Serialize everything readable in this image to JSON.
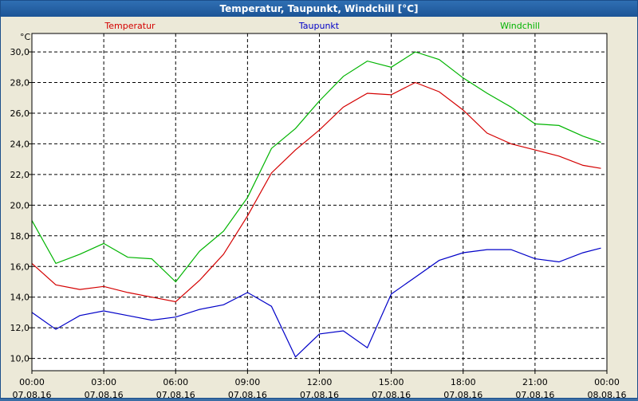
{
  "window": {
    "title": "Temperatur, Taupunkt, Windchill [°C]"
  },
  "chart_data": {
    "type": "line",
    "title": "Temperatur, Taupunkt, Windchill [°C]",
    "ylabel": "°C",
    "ylim": [
      9.2,
      31.2
    ],
    "y_ticks": [
      "10,0",
      "12,0",
      "14,0",
      "16,0",
      "18,0",
      "20,0",
      "22,0",
      "24,0",
      "26,0",
      "28,0",
      "30,0"
    ],
    "x_ticks": [
      {
        "time": "00:00",
        "date": "07.08.16"
      },
      {
        "time": "03:00",
        "date": "07.08.16"
      },
      {
        "time": "06:00",
        "date": "07.08.16"
      },
      {
        "time": "09:00",
        "date": "07.08.16"
      },
      {
        "time": "12:00",
        "date": "07.08.16"
      },
      {
        "time": "15:00",
        "date": "07.08.16"
      },
      {
        "time": "18:00",
        "date": "07.08.16"
      },
      {
        "time": "21:00",
        "date": "07.08.16"
      },
      {
        "time": "00:00",
        "date": "08.08.16"
      }
    ],
    "grid": true,
    "colors": {
      "Temperatur": "#d40000",
      "Taupunkt": "#0000c8",
      "Windchill": "#00b400"
    },
    "x": [
      "00:00",
      "01:00",
      "02:00",
      "03:00",
      "04:00",
      "05:00",
      "06:00",
      "07:00",
      "08:00",
      "09:00",
      "10:00",
      "11:00",
      "12:00",
      "13:00",
      "14:00",
      "15:00",
      "16:00",
      "17:00",
      "18:00",
      "19:00",
      "20:00",
      "21:00",
      "22:00",
      "23:00",
      "23:45"
    ],
    "series": [
      {
        "name": "Temperatur",
        "values": [
          16.2,
          14.8,
          14.5,
          14.7,
          14.3,
          14.0,
          13.7,
          15.1,
          16.8,
          19.3,
          22.1,
          23.6,
          24.9,
          26.4,
          27.3,
          27.2,
          28.0,
          27.4,
          26.2,
          24.7,
          24.0,
          23.6,
          23.2,
          22.6,
          22.4
        ]
      },
      {
        "name": "Taupunkt",
        "values": [
          13.0,
          11.9,
          12.8,
          13.1,
          12.8,
          12.5,
          12.7,
          13.2,
          13.5,
          14.3,
          13.4,
          10.1,
          11.6,
          11.8,
          10.7,
          14.2,
          15.3,
          16.4,
          16.9,
          17.1,
          17.1,
          16.5,
          16.3,
          16.9,
          17.2
        ]
      },
      {
        "name": "Windchill",
        "values": [
          19.0,
          16.2,
          16.8,
          17.5,
          16.6,
          16.5,
          15.0,
          17.0,
          18.3,
          20.5,
          23.7,
          25.0,
          26.8,
          28.4,
          29.4,
          29.0,
          30.0,
          29.5,
          28.3,
          27.3,
          26.4,
          25.3,
          25.2,
          24.5,
          24.1
        ]
      }
    ]
  }
}
